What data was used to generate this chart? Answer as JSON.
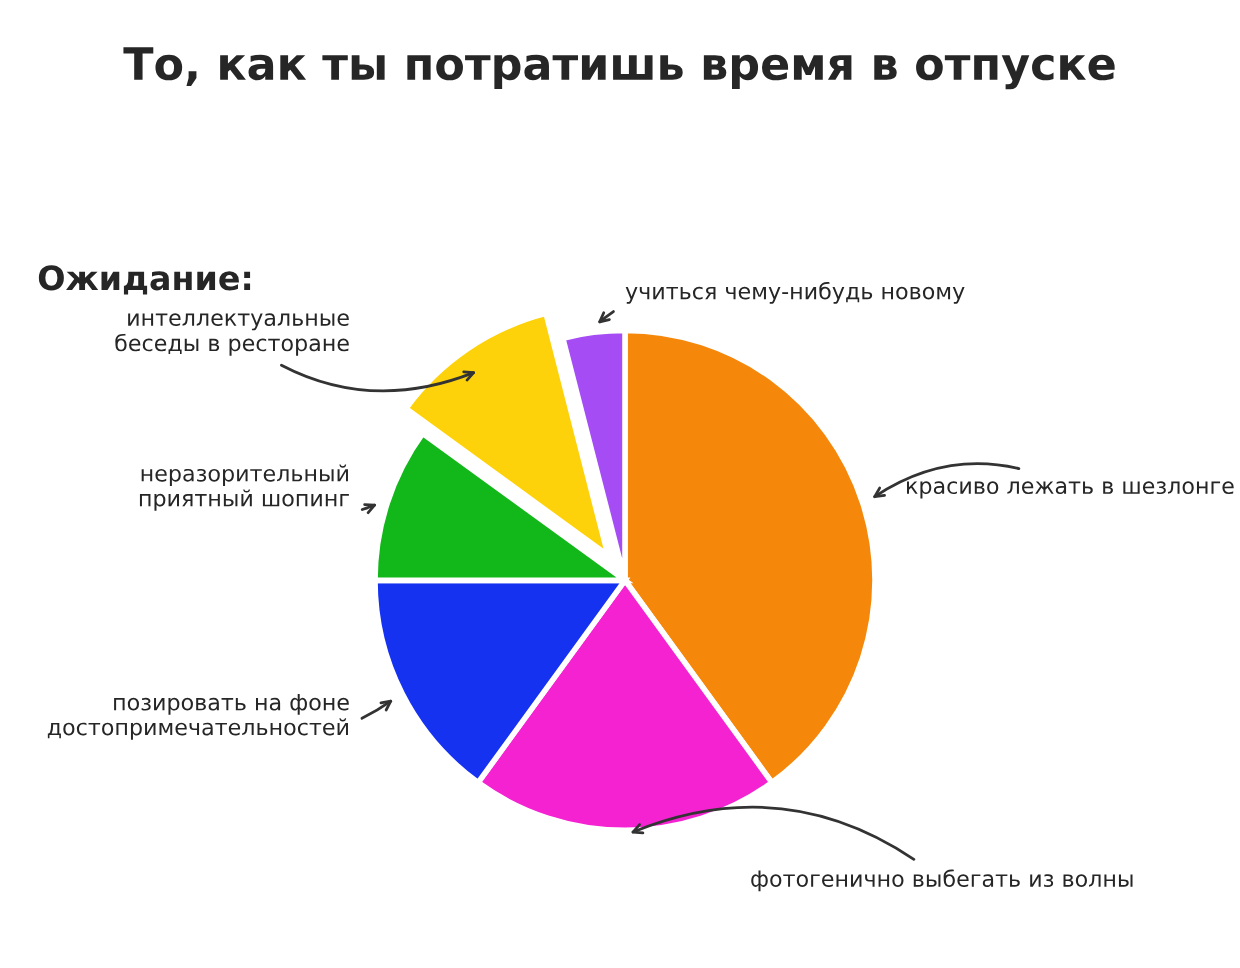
{
  "chart_data": {
    "type": "pie",
    "title": "То, как ты потратишь время в отпуске",
    "subtitle": "Ожидание:",
    "categories": [
      "красиво лежать в шезлонге",
      "фотогенично выбегать из волны",
      "позировать на фоне\nдостопримечательностей",
      "неразорительный\nприятный шопинг",
      "интеллектуальные\nбеседы в ресторане",
      "учиться чему-нибудь новому"
    ],
    "values": [
      40,
      20,
      15,
      10,
      11,
      4
    ],
    "colors": [
      "#f5870a",
      "#f522d2",
      "#1432f0",
      "#12b81a",
      "#fdd20a",
      "#a64cf5"
    ]
  }
}
